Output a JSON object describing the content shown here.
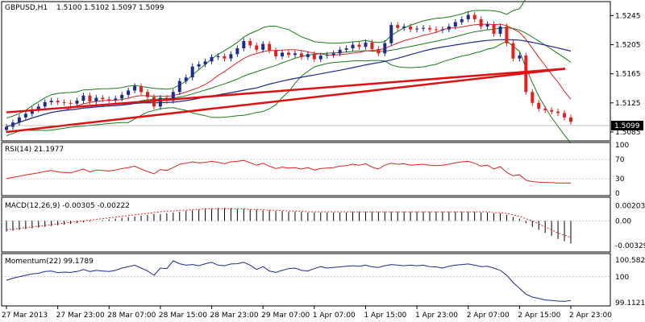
{
  "chart_data": {
    "type": "line",
    "symbol": "GBPUSD,H1",
    "ohlc_header": [
      "1.5100",
      "1.5102",
      "1.5097",
      "1.5099"
    ],
    "current_price_label": "1.5099",
    "price_axis_ticks": [
      "1.5245",
      "1.5205",
      "1.5165",
      "1.5125",
      "1.5085"
    ],
    "price_axis_values": [
      1.5245,
      1.5205,
      1.5165,
      1.5125,
      1.5085
    ],
    "price_range": [
      1.5075,
      1.5262
    ],
    "x_tick_labels": [
      "27 Mar 2013",
      "27 Mar 23:00",
      "28 Mar 07:00",
      "28 Mar 15:00",
      "28 Mar 23:00",
      "29 Mar 07:00",
      "1 Apr 07:00",
      "1 Apr 15:00",
      "1 Apr 23:00",
      "2 Apr 07:00",
      "2 Apr 15:00",
      "2 Apr 23:00"
    ],
    "price_series_close": [
      1.5092,
      1.5098,
      1.5105,
      1.511,
      1.5116,
      1.512,
      1.5126,
      1.5128,
      1.5126,
      1.5125,
      1.5124,
      1.5128,
      1.5135,
      1.5127,
      1.5132,
      1.513,
      1.5129,
      1.5131,
      1.5136,
      1.5142,
      1.5148,
      1.514,
      1.5133,
      1.512,
      1.5132,
      1.5128,
      1.514,
      1.5155,
      1.516,
      1.5175,
      1.5178,
      1.5182,
      1.5188,
      1.5189,
      1.5186,
      1.5192,
      1.52,
      1.521,
      1.5204,
      1.5198,
      1.5206,
      1.5197,
      1.5189,
      1.5194,
      1.5191,
      1.5193,
      1.5188,
      1.5192,
      1.5185,
      1.519,
      1.5191,
      1.5193,
      1.5198,
      1.52,
      1.5205,
      1.5202,
      1.5208,
      1.5199,
      1.5193,
      1.5207,
      1.5232,
      1.5228,
      1.523,
      1.5226,
      1.5227,
      1.5228,
      1.5226,
      1.5225,
      1.5226,
      1.523,
      1.5236,
      1.524,
      1.5246,
      1.524,
      1.523,
      1.5233,
      1.522,
      1.523,
      1.5207,
      1.5186,
      1.519,
      1.514,
      1.5125,
      1.5117,
      1.5115,
      1.5113,
      1.5111,
      1.5105,
      1.5099
    ],
    "trendlines": [
      {
        "x": [
          0.0,
          0.99
        ],
        "y": [
          1.5085,
          1.5172
        ]
      },
      {
        "x": [
          0.0,
          0.99
        ],
        "y": [
          1.5112,
          1.5172
        ]
      }
    ],
    "rsi": {
      "label": "RSI(14) 21.1977",
      "ticks": [
        "100",
        "70",
        "30",
        "0"
      ],
      "levels": [
        70,
        30
      ],
      "range": [
        0,
        100
      ],
      "values": [
        30,
        33,
        35,
        38,
        40,
        42,
        45,
        47,
        44,
        43,
        42,
        46,
        50,
        44,
        48,
        47,
        46,
        48,
        51,
        53,
        56,
        50,
        45,
        40,
        49,
        47,
        53,
        60,
        62,
        65,
        63,
        64,
        66,
        64,
        61,
        65,
        66,
        68,
        63,
        58,
        62,
        56,
        51,
        54,
        52,
        53,
        50,
        53,
        48,
        51,
        52,
        53,
        56,
        57,
        60,
        58,
        61,
        54,
        50,
        58,
        62,
        60,
        61,
        58,
        59,
        60,
        58,
        57,
        58,
        60,
        63,
        65,
        66,
        62,
        56,
        58,
        50,
        55,
        43,
        36,
        38,
        27,
        24,
        23,
        22,
        22,
        21,
        21,
        21
      ]
    },
    "macd": {
      "label": "MACD(12,26,9) -0.00305 -0.00222",
      "ticks": [
        "0.00203",
        "0.00",
        "-0.00329"
      ],
      "range": [
        -0.0038,
        0.0026
      ],
      "histogram": [
        -0.0014,
        -0.0013,
        -0.0012,
        -0.0011,
        -0.001,
        -0.0009,
        -0.0008,
        -0.0007,
        -0.0006,
        -0.0005,
        -0.0004,
        -0.0003,
        -0.0002,
        -0.0001,
        0.0,
        0.0001,
        0.0002,
        0.0003,
        0.0004,
        0.0005,
        0.0006,
        0.0007,
        0.0008,
        0.0009,
        0.0009,
        0.001,
        0.0011,
        0.0012,
        0.0013,
        0.0014,
        0.0015,
        0.0016,
        0.0016,
        0.0017,
        0.0017,
        0.0017,
        0.0016,
        0.0016,
        0.0015,
        0.0015,
        0.0014,
        0.0014,
        0.0013,
        0.0013,
        0.0012,
        0.0012,
        0.0012,
        0.0011,
        0.0011,
        0.0011,
        0.0011,
        0.0011,
        0.0011,
        0.0011,
        0.0012,
        0.0012,
        0.0012,
        0.0012,
        0.0012,
        0.0012,
        0.0012,
        0.0012,
        0.0012,
        0.0012,
        0.0012,
        0.0012,
        0.0012,
        0.0012,
        0.0012,
        0.0012,
        0.0012,
        0.0012,
        0.0012,
        0.0012,
        0.0011,
        0.0011,
        0.001,
        0.001,
        0.0008,
        0.0005,
        0.0003,
        -0.0003,
        -0.0008,
        -0.0012,
        -0.0016,
        -0.002,
        -0.0024,
        -0.0027,
        -0.003
      ],
      "signal": [
        -0.0012,
        -0.0011,
        -0.001,
        -0.0009,
        -0.0008,
        -0.0007,
        -0.0006,
        -0.0005,
        -0.0004,
        -0.0003,
        -0.0002,
        -0.0001,
        0.0,
        0.0001,
        0.0002,
        0.0003,
        0.0004,
        0.0005,
        0.0006,
        0.0007,
        0.0008,
        0.0009,
        0.001,
        0.0011,
        0.0012,
        0.0013,
        0.0013,
        0.0014,
        0.0014,
        0.0015,
        0.0015,
        0.0016,
        0.0016,
        0.0016,
        0.0016,
        0.0016,
        0.0016,
        0.0016,
        0.0015,
        0.0015,
        0.0015,
        0.0014,
        0.0014,
        0.0014,
        0.0013,
        0.0013,
        0.0013,
        0.0012,
        0.0012,
        0.0012,
        0.0012,
        0.0012,
        0.0012,
        0.0012,
        0.0012,
        0.0012,
        0.0012,
        0.0012,
        0.0012,
        0.0012,
        0.0012,
        0.0012,
        0.0012,
        0.0012,
        0.0012,
        0.0012,
        0.0012,
        0.0012,
        0.0012,
        0.0012,
        0.0012,
        0.0012,
        0.0012,
        0.0012,
        0.0012,
        0.0012,
        0.0011,
        0.0011,
        0.001,
        0.0008,
        0.0006,
        0.0003,
        0.0,
        -0.0004,
        -0.0008,
        -0.0012,
        -0.0016,
        -0.0019,
        -0.0022
      ]
    },
    "momentum": {
      "label": "Momentum(22) 99.1789",
      "ticks": [
        "100.5823",
        "100",
        "99.1121"
      ],
      "range": [
        99.05,
        100.66
      ],
      "values": [
        99.88,
        99.95,
        100.0,
        100.05,
        100.1,
        100.12,
        100.18,
        100.2,
        100.14,
        100.16,
        100.15,
        100.18,
        100.25,
        100.18,
        100.22,
        100.2,
        100.18,
        100.22,
        100.3,
        100.35,
        100.4,
        100.3,
        100.2,
        100.05,
        100.3,
        100.28,
        100.55,
        100.45,
        100.4,
        100.42,
        100.38,
        100.45,
        100.5,
        100.4,
        100.38,
        100.44,
        100.45,
        100.5,
        100.4,
        100.25,
        100.35,
        100.2,
        100.15,
        100.22,
        100.28,
        100.3,
        100.22,
        100.2,
        100.28,
        100.35,
        100.3,
        100.32,
        100.34,
        100.36,
        100.38,
        100.36,
        100.4,
        100.34,
        100.32,
        100.38,
        100.42,
        100.4,
        100.38,
        100.4,
        100.38,
        100.4,
        100.35,
        100.34,
        100.3,
        100.36,
        100.4,
        100.42,
        100.44,
        100.4,
        100.35,
        100.36,
        100.3,
        100.22,
        100.05,
        99.8,
        99.6,
        99.4,
        99.3,
        99.25,
        99.2,
        99.18,
        99.16,
        99.15,
        99.18
      ]
    }
  }
}
